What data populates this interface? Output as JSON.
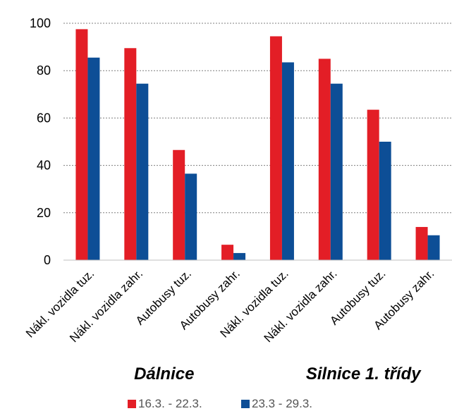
{
  "chart_data": {
    "type": "bar",
    "categories": [
      "Nákl. vozidla tuz.",
      "Nákl. vozidla zahr.",
      "Autobusy tuz.",
      "Autobusy zahr.",
      "Nákl. vozidla tuz.",
      "Nákl. vozidla zahr.",
      "Autobusy tuz.",
      "Autobusy zahr."
    ],
    "groups": [
      {
        "label": "Dálnice",
        "categories": [
          0,
          1,
          2,
          3
        ]
      },
      {
        "label": "Silnice 1. třídy",
        "categories": [
          4,
          5,
          6,
          7
        ]
      }
    ],
    "series": [
      {
        "name": "16.3. - 22.3.",
        "color": "#e31e26",
        "values": [
          97.5,
          89.5,
          46.5,
          6.5,
          94.5,
          85,
          63.5,
          14
        ]
      },
      {
        "name": "23.3 - 29.3.",
        "color": "#0d4e96",
        "values": [
          85.5,
          74.5,
          36.5,
          3,
          83.5,
          74.5,
          50,
          10.5
        ]
      }
    ],
    "y_ticks": [
      "0",
      "20",
      "40",
      "60",
      "80",
      "100"
    ],
    "ylim": [
      0,
      100
    ],
    "grid": true,
    "legend_position": "bottom-center"
  }
}
